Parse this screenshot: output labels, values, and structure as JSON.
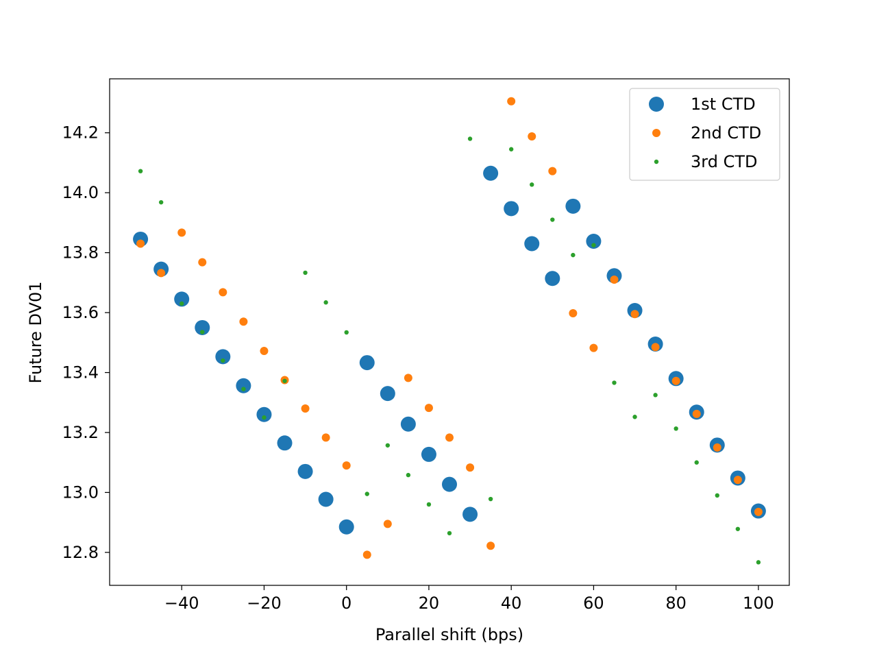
{
  "chart_data": {
    "type": "scatter",
    "title": "",
    "xlabel": "Parallel shift (bps)",
    "ylabel": "Future DV01",
    "xlim": [
      -57.5,
      107.5
    ],
    "ylim": [
      12.69,
      14.38
    ],
    "xticks": [
      -40,
      -20,
      0,
      20,
      40,
      60,
      80,
      100
    ],
    "xtick_labels": [
      "−40",
      "−20",
      "0",
      "20",
      "40",
      "60",
      "80",
      "100"
    ],
    "yticks": [
      12.8,
      13.0,
      13.2,
      13.4,
      13.6,
      13.8,
      14.0,
      14.2
    ],
    "ytick_labels": [
      "12.8",
      "13.0",
      "13.2",
      "13.4",
      "13.6",
      "13.8",
      "14.0",
      "14.2"
    ],
    "grid": false,
    "legend_position": "top-right",
    "x": [
      -50,
      -45,
      -40,
      -35,
      -30,
      -25,
      -20,
      -15,
      -10,
      -5,
      0,
      5,
      10,
      15,
      20,
      25,
      30,
      35,
      40,
      45,
      50,
      55,
      60,
      65,
      70,
      75,
      80,
      85,
      90,
      95,
      100
    ],
    "series": [
      {
        "name": "1st CTD",
        "color": "#1f77b4",
        "marker_size": "large",
        "values": [
          13.845,
          13.745,
          13.645,
          13.55,
          13.453,
          13.356,
          13.26,
          13.165,
          13.07,
          12.977,
          12.885,
          13.433,
          13.33,
          13.228,
          13.127,
          13.027,
          12.927,
          14.065,
          13.947,
          13.83,
          13.714,
          13.955,
          13.838,
          13.723,
          13.607,
          13.495,
          13.38,
          13.268,
          13.158,
          13.048,
          12.938
        ]
      },
      {
        "name": "2nd CTD",
        "color": "#ff7f0e",
        "marker_size": "medium",
        "values": [
          13.83,
          13.732,
          13.867,
          13.768,
          13.668,
          13.57,
          13.472,
          13.375,
          13.28,
          13.183,
          13.09,
          12.792,
          12.895,
          13.382,
          13.282,
          13.183,
          13.083,
          12.822,
          14.305,
          14.188,
          14.072,
          13.598,
          13.482,
          13.71,
          13.595,
          13.485,
          13.372,
          13.262,
          13.15,
          13.042,
          12.935
        ]
      },
      {
        "name": "3rd CTD",
        "color": "#2ca02c",
        "marker_size": "small",
        "values": [
          14.072,
          13.968,
          13.63,
          13.535,
          13.44,
          13.345,
          13.25,
          13.372,
          13.733,
          13.634,
          13.534,
          12.995,
          13.157,
          13.058,
          12.96,
          12.864,
          14.18,
          12.978,
          14.145,
          14.027,
          13.91,
          13.792,
          13.825,
          13.366,
          13.252,
          13.325,
          13.213,
          13.1,
          12.99,
          12.878,
          12.767
        ]
      }
    ]
  }
}
